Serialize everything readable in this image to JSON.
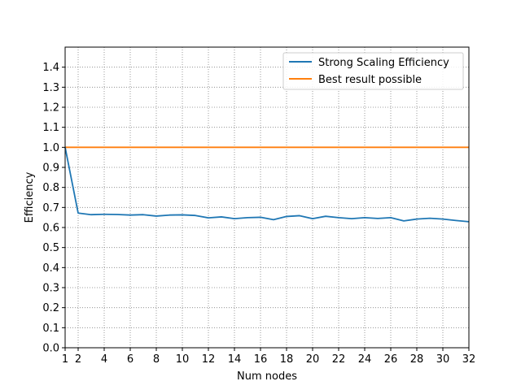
{
  "chart_data": {
    "type": "line",
    "title": "",
    "xlabel": "Num nodes",
    "ylabel": "Efficiency",
    "xlim": [
      1,
      32
    ],
    "ylim": [
      0.0,
      1.5
    ],
    "xticks": [
      1,
      2,
      4,
      6,
      8,
      10,
      12,
      14,
      16,
      18,
      20,
      22,
      24,
      26,
      28,
      30,
      32
    ],
    "yticks": [
      0.0,
      0.1,
      0.2,
      0.3,
      0.4,
      0.5,
      0.6,
      0.7,
      0.8,
      0.9,
      1.0,
      1.1,
      1.2,
      1.3,
      1.4
    ],
    "grid": true,
    "legend_position": "top-right",
    "x": [
      1,
      2,
      3,
      4,
      5,
      6,
      7,
      8,
      9,
      10,
      11,
      12,
      13,
      14,
      15,
      16,
      17,
      18,
      19,
      20,
      21,
      22,
      23,
      24,
      25,
      26,
      27,
      28,
      29,
      30,
      31,
      32
    ],
    "series": [
      {
        "name": "Strong Scaling Efficiency",
        "color": "#1f77b4",
        "values": [
          1.0,
          0.672,
          0.664,
          0.666,
          0.665,
          0.662,
          0.664,
          0.657,
          0.662,
          0.663,
          0.66,
          0.648,
          0.653,
          0.644,
          0.649,
          0.651,
          0.639,
          0.655,
          0.659,
          0.644,
          0.656,
          0.649,
          0.644,
          0.649,
          0.645,
          0.649,
          0.633,
          0.642,
          0.646,
          0.642,
          0.635,
          0.629
        ]
      },
      {
        "name": "Best result possible",
        "color": "#ff7f0e",
        "values": [
          1.0,
          1.0,
          1.0,
          1.0,
          1.0,
          1.0,
          1.0,
          1.0,
          1.0,
          1.0,
          1.0,
          1.0,
          1.0,
          1.0,
          1.0,
          1.0,
          1.0,
          1.0,
          1.0,
          1.0,
          1.0,
          1.0,
          1.0,
          1.0,
          1.0,
          1.0,
          1.0,
          1.0,
          1.0,
          1.0,
          1.0,
          1.0
        ]
      }
    ]
  }
}
